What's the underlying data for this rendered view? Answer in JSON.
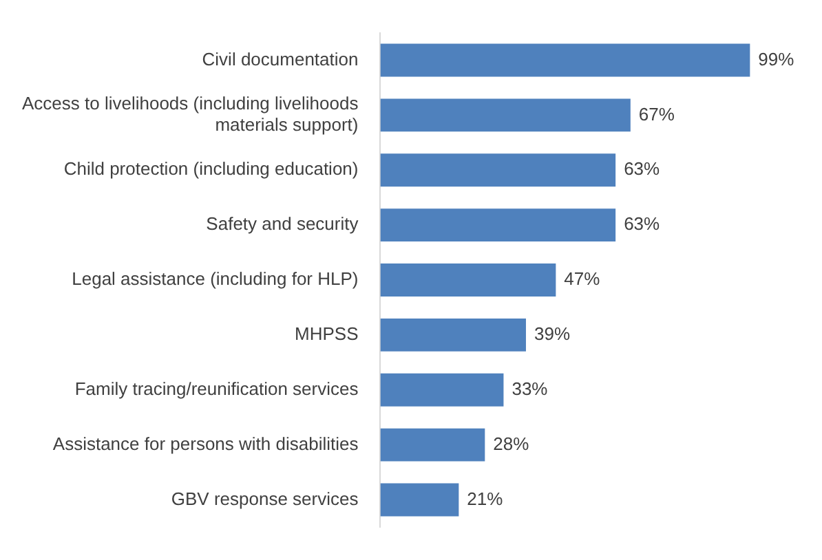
{
  "chart_data": {
    "type": "bar",
    "orientation": "horizontal",
    "categories": [
      "Civil documentation",
      "Access to livelihoods (including livelihoods materials support)",
      "Child protection (including education)",
      "Safety and security",
      "Legal assistance (including for HLP)",
      "MHPSS",
      "Family tracing/reunification services",
      "Assistance for persons with disabilities",
      "GBV response services"
    ],
    "values": [
      99,
      67,
      63,
      63,
      47,
      39,
      33,
      28,
      21
    ],
    "value_labels": [
      "99%",
      "67%",
      "63%",
      "63%",
      "47%",
      "39%",
      "33%",
      "28%",
      "21%"
    ],
    "color": "#4f81bd"
  }
}
